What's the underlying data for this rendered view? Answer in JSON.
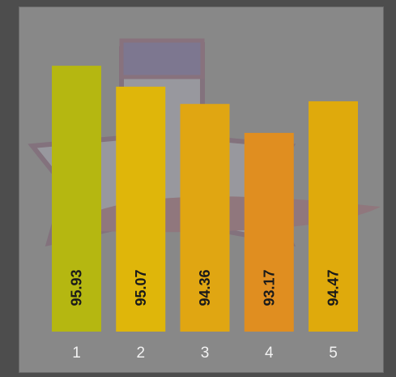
{
  "chart_data": {
    "type": "bar",
    "categories": [
      "1",
      "2",
      "3",
      "4",
      "5"
    ],
    "values": [
      95.93,
      95.07,
      94.36,
      93.17,
      94.47
    ],
    "value_labels": [
      "95.93",
      "95.07",
      "94.36",
      "93.17",
      "94.47"
    ],
    "bar_colors": [
      "#b5b711",
      "#dfb60a",
      "#e0a612",
      "#e08e20",
      "#dfaa0c"
    ],
    "label_orientation": "vertical",
    "grid": false,
    "legend": "none",
    "background_logo": "racing-team-logo"
  },
  "colors": {
    "panel_background": "#888888",
    "outer_background": "#4d4d4d",
    "tick_label": "#f2f2f2",
    "value_label": "#1a1a1a"
  }
}
